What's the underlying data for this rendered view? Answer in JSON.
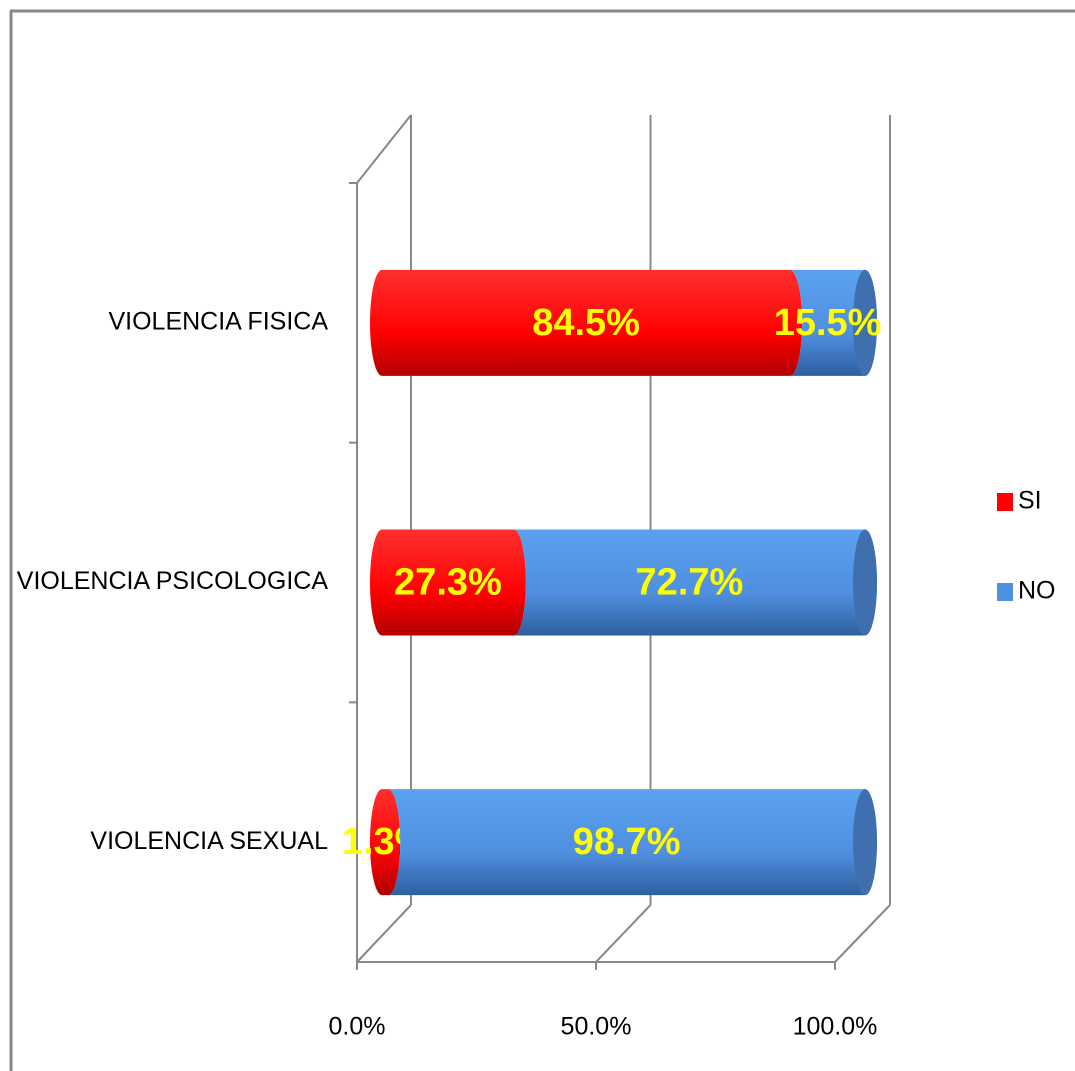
{
  "chart_data": {
    "type": "stacked_bar_horizontal",
    "categories": [
      "VIOLENCIA FISICA",
      "VIOLENCIA PSICOLOGICA",
      "VIOLENCIA SEXUAL"
    ],
    "series": [
      {
        "name": "SI",
        "color": "#ff0000",
        "values": [
          84.5,
          27.3,
          1.3
        ],
        "value_labels": [
          "84.5%",
          "27.3%",
          "1.3%"
        ]
      },
      {
        "name": "NO",
        "color": "#4f8fdf",
        "values": [
          15.5,
          72.7,
          98.7
        ],
        "value_labels": [
          "15.5%",
          "72.7%",
          "98.7%"
        ]
      }
    ],
    "xlim": [
      0,
      100
    ],
    "xticks": [
      {
        "value": 0,
        "label": "0.0%"
      },
      {
        "value": 50,
        "label": "50.0%"
      },
      {
        "value": 100,
        "label": "100.0%"
      }
    ],
    "grid": true,
    "legend": "right"
  }
}
